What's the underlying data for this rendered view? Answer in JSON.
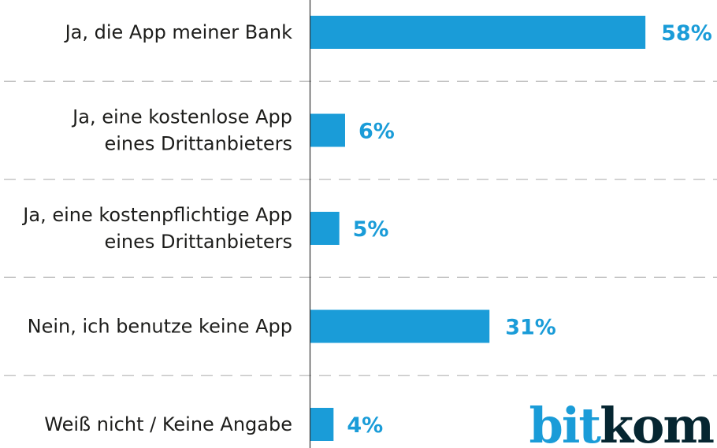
{
  "chart_data": {
    "type": "bar",
    "orientation": "horizontal",
    "categories": [
      [
        "Ja, die  App meiner Bank"
      ],
      [
        "Ja, eine kostenlose App",
        "eines Drittanbieters"
      ],
      [
        "Ja, eine kostenpflichtige App",
        "eines Drittanbieters"
      ],
      [
        "Nein, ich benutze keine App"
      ],
      [
        "Weiß nicht / Keine Angabe"
      ]
    ],
    "values": [
      58,
      6,
      5,
      31,
      4
    ],
    "labels": [
      "58%",
      "6%",
      "5%",
      "31%",
      "4%"
    ],
    "xlim": [
      0,
      70
    ],
    "unit": "%",
    "grid": false,
    "colors": {
      "bar": "#1a9cd8",
      "label": "#1a9cd8",
      "axis": "#333333",
      "separator": "#bbbbbb"
    }
  },
  "logo": {
    "part1": "bit",
    "part2": "kom",
    "color1": "#1a9cd8",
    "color2": "#062631"
  }
}
